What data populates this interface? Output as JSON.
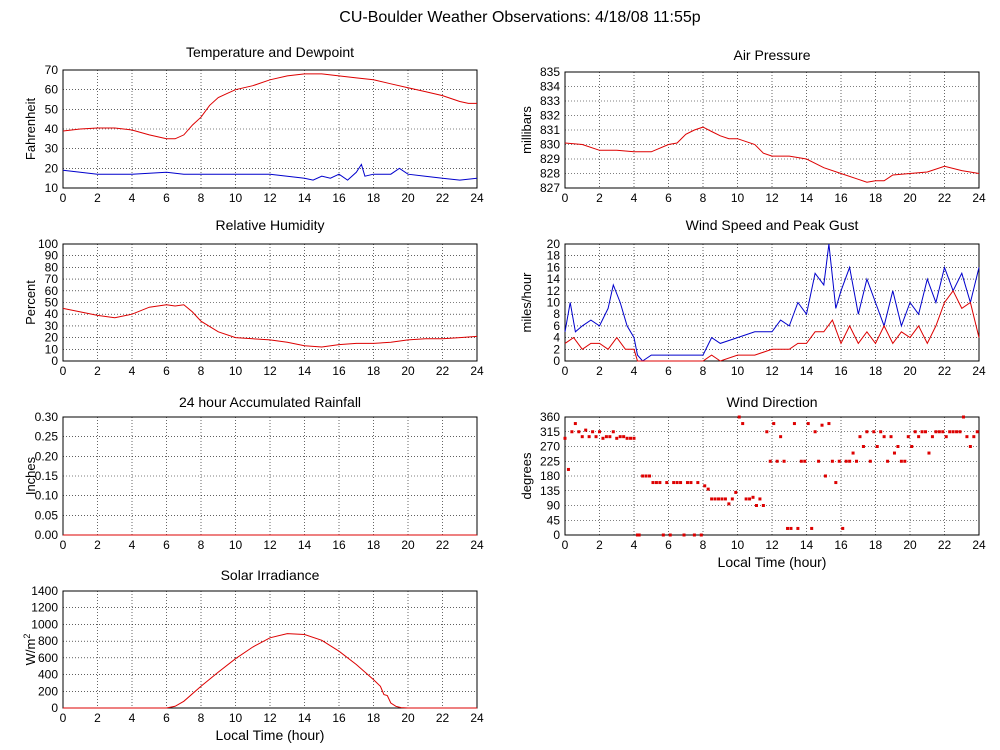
{
  "page": {
    "title": "CU-Boulder Weather Observations: 4/18/08 11:55p"
  },
  "colors": {
    "red": "#dd0000",
    "blue": "#0000cc",
    "grid": "#000000"
  },
  "chart_data": [
    {
      "id": "temperature",
      "type": "line",
      "title": "Temperature and Dewpoint",
      "xlabel": "",
      "ylabel": "Fahrenheit",
      "xlim": [
        0,
        24
      ],
      "ylim": [
        10,
        70
      ],
      "xticks": [
        "0",
        "2",
        "4",
        "6",
        "8",
        "10",
        "12",
        "14",
        "16",
        "18",
        "20",
        "22",
        "24"
      ],
      "yticks": [
        "10",
        "20",
        "30",
        "40",
        "50",
        "60",
        "70"
      ],
      "ytick_values": [
        10,
        20,
        30,
        40,
        50,
        60,
        70
      ],
      "series": [
        {
          "color": "red",
          "x": [
            0,
            1,
            2,
            3,
            4,
            5,
            6,
            6.5,
            7,
            7.5,
            8,
            8.5,
            9,
            9.5,
            10,
            11,
            12,
            13,
            14,
            15,
            16,
            17,
            18,
            19,
            20,
            21,
            22,
            23,
            23.5,
            24
          ],
          "y": [
            39,
            40,
            40.5,
            40.5,
            39.5,
            37,
            35,
            35,
            37,
            42,
            46,
            52,
            56,
            58,
            60,
            62,
            65,
            67,
            68,
            68,
            67,
            66,
            65,
            63,
            61,
            59,
            57,
            54,
            53,
            53
          ]
        },
        {
          "color": "blue",
          "x": [
            0,
            1,
            2,
            3,
            4,
            5,
            6,
            7,
            8,
            9,
            10,
            11,
            12,
            13,
            14,
            14.5,
            15,
            15.5,
            16,
            16.5,
            17,
            17.3,
            17.5,
            18,
            19,
            19.5,
            20,
            21,
            22,
            23,
            24
          ],
          "y": [
            19,
            18,
            17,
            17,
            17,
            17.5,
            18,
            17,
            17,
            17,
            17,
            17,
            17,
            16,
            15,
            14,
            16,
            15,
            17,
            14,
            18,
            22,
            16,
            17,
            17,
            20,
            17,
            16,
            15,
            14,
            15
          ]
        }
      ]
    },
    {
      "id": "pressure",
      "type": "line",
      "title": "Air Pressure",
      "xlabel": "",
      "ylabel": "millibars",
      "xlim": [
        0,
        24
      ],
      "ylim": [
        827,
        835
      ],
      "xticks": [
        "0",
        "2",
        "4",
        "6",
        "8",
        "10",
        "12",
        "14",
        "16",
        "18",
        "20",
        "22",
        "24"
      ],
      "yticks": [
        "827",
        "828",
        "829",
        "830",
        "831",
        "832",
        "833",
        "834",
        "835"
      ],
      "ytick_values": [
        827,
        828,
        829,
        830,
        831,
        832,
        833,
        834,
        835
      ],
      "series": [
        {
          "color": "red",
          "x": [
            0,
            1,
            2,
            3,
            4,
            5,
            6,
            6.5,
            7,
            7.5,
            8,
            8.5,
            9,
            9.5,
            10,
            11,
            11.5,
            12,
            13,
            14,
            14.5,
            15,
            16,
            17,
            17.5,
            18,
            18.5,
            19,
            20,
            21,
            22,
            23,
            24
          ],
          "y": [
            830.1,
            830,
            829.6,
            829.6,
            829.5,
            829.5,
            830,
            830.1,
            830.7,
            831,
            831.2,
            830.9,
            830.6,
            830.4,
            830.4,
            830,
            829.4,
            829.2,
            829.2,
            829,
            828.7,
            828.4,
            828,
            827.6,
            827.4,
            827.5,
            827.5,
            827.9,
            828,
            828.1,
            828.5,
            828.2,
            828
          ]
        }
      ]
    },
    {
      "id": "humidity",
      "type": "line",
      "title": "Relative Humidity",
      "xlabel": "",
      "ylabel": "Percent",
      "xlim": [
        0,
        24
      ],
      "ylim": [
        0,
        100
      ],
      "xticks": [
        "0",
        "2",
        "4",
        "6",
        "8",
        "10",
        "12",
        "14",
        "16",
        "18",
        "20",
        "22",
        "24"
      ],
      "yticks": [
        "0",
        "10",
        "20",
        "30",
        "40",
        "50",
        "60",
        "70",
        "80",
        "90",
        "100"
      ],
      "ytick_values": [
        0,
        10,
        20,
        30,
        40,
        50,
        60,
        70,
        80,
        90,
        100
      ],
      "series": [
        {
          "color": "red",
          "x": [
            0,
            1,
            2,
            3,
            4,
            5,
            6,
            6.5,
            7,
            7.5,
            8,
            9,
            10,
            11,
            12,
            13,
            14,
            15,
            16,
            17,
            18,
            19,
            20,
            21,
            22,
            23,
            24
          ],
          "y": [
            45,
            42,
            39,
            37,
            40,
            46,
            48,
            47,
            48,
            42,
            34,
            25,
            20,
            19,
            18,
            16,
            13,
            12,
            14,
            15,
            15,
            16,
            18,
            19,
            19,
            20,
            21
          ]
        }
      ]
    },
    {
      "id": "wind",
      "type": "line",
      "title": "Wind Speed and Peak Gust",
      "xlabel": "",
      "ylabel": "miles/hour",
      "xlim": [
        0,
        24
      ],
      "ylim": [
        0,
        20
      ],
      "xticks": [
        "0",
        "2",
        "4",
        "6",
        "8",
        "10",
        "12",
        "14",
        "16",
        "18",
        "20",
        "22",
        "24"
      ],
      "yticks": [
        "0",
        "2",
        "4",
        "6",
        "8",
        "10",
        "12",
        "14",
        "16",
        "18",
        "20"
      ],
      "ytick_values": [
        0,
        2,
        4,
        6,
        8,
        10,
        12,
        14,
        16,
        18,
        20
      ],
      "series": [
        {
          "color": "blue",
          "x": [
            0,
            0.3,
            0.6,
            1,
            1.5,
            2,
            2.5,
            2.8,
            3.2,
            3.6,
            4,
            4.2,
            4.5,
            5,
            6,
            7,
            8,
            8.5,
            9,
            10,
            11,
            12,
            12.5,
            13,
            13.5,
            14,
            14.5,
            15,
            15.3,
            15.7,
            16,
            16.5,
            17,
            17.5,
            18,
            18.5,
            19,
            19.5,
            20,
            20.5,
            21,
            21.5,
            22,
            22.5,
            23,
            23.5,
            24
          ],
          "y": [
            5,
            10,
            5,
            6,
            7,
            6,
            9,
            13,
            10,
            6,
            4,
            1,
            0,
            1,
            1,
            1,
            1,
            4,
            3,
            4,
            5,
            5,
            7,
            6,
            10,
            8,
            15,
            13,
            20,
            9,
            12,
            16,
            8,
            14,
            10,
            6,
            12,
            6,
            10,
            8,
            14,
            10,
            16,
            12,
            15,
            10,
            16
          ]
        },
        {
          "color": "red",
          "x": [
            0,
            0.5,
            1,
            1.5,
            2,
            2.5,
            3,
            3.5,
            4,
            4.2,
            5,
            6,
            7,
            8,
            8.5,
            9,
            10,
            11,
            12,
            13,
            13.5,
            14,
            14.5,
            15,
            15.5,
            16,
            16.5,
            17,
            17.5,
            18,
            18.5,
            19,
            19.5,
            20,
            20.5,
            21,
            21.5,
            22,
            22.5,
            23,
            23.5,
            24
          ],
          "y": [
            3,
            4,
            2,
            3,
            3,
            2,
            4,
            2,
            2,
            0,
            0,
            0,
            0,
            0,
            1,
            0,
            1,
            1,
            2,
            2,
            3,
            3,
            5,
            5,
            7,
            3,
            6,
            3,
            5,
            3,
            6,
            3,
            5,
            4,
            6,
            3,
            6,
            10,
            12,
            9,
            10,
            4
          ]
        }
      ]
    },
    {
      "id": "rain",
      "type": "line",
      "title": "24 hour Accumulated Rainfall",
      "xlabel": "",
      "ylabel": "Inches",
      "xlim": [
        0,
        24
      ],
      "ylim": [
        0,
        0.3
      ],
      "xticks": [
        "0",
        "2",
        "4",
        "6",
        "8",
        "10",
        "12",
        "14",
        "16",
        "18",
        "20",
        "22",
        "24"
      ],
      "yticks": [
        "0.00",
        "0.05",
        "0.10",
        "0.15",
        "0.20",
        "0.25",
        "0.30"
      ],
      "ytick_values": [
        0,
        0.05,
        0.1,
        0.15,
        0.2,
        0.25,
        0.3
      ],
      "series": [
        {
          "color": "red",
          "x": [
            0,
            24
          ],
          "y": [
            0,
            0
          ]
        }
      ]
    },
    {
      "id": "direction",
      "type": "scatter",
      "title": "Wind Direction",
      "xlabel": "Local Time (hour)",
      "ylabel": "degrees",
      "xlim": [
        0,
        24
      ],
      "ylim": [
        0,
        360
      ],
      "xticks": [
        "0",
        "2",
        "4",
        "6",
        "8",
        "10",
        "12",
        "14",
        "16",
        "18",
        "20",
        "22",
        "24"
      ],
      "yticks": [
        "0",
        "45",
        "90",
        "135",
        "180",
        "225",
        "270",
        "315",
        "360"
      ],
      "ytick_values": [
        0,
        45,
        90,
        135,
        180,
        225,
        270,
        315,
        360
      ],
      "series": [
        {
          "color": "red",
          "x": [
            0,
            0.2,
            0.4,
            0.6,
            0.8,
            1,
            1.2,
            1.4,
            1.6,
            1.8,
            2,
            2.2,
            2.4,
            2.6,
            2.8,
            3,
            3.2,
            3.4,
            3.6,
            3.8,
            4,
            4.2,
            4.3,
            4.5,
            4.7,
            4.9,
            5.1,
            5.3,
            5.5,
            5.7,
            5.9,
            6.1,
            6.3,
            6.5,
            6.7,
            6.9,
            7.1,
            7.3,
            7.5,
            7.7,
            7.9,
            8.1,
            8.3,
            8.5,
            8.7,
            8.9,
            9.1,
            9.3,
            9.5,
            9.7,
            9.9,
            10.1,
            10.3,
            10.5,
            10.7,
            10.9,
            11.1,
            11.3,
            11.5,
            11.7,
            11.9,
            12.1,
            12.3,
            12.5,
            12.7,
            12.9,
            13.1,
            13.3,
            13.5,
            13.7,
            13.9,
            14.1,
            14.3,
            14.5,
            14.7,
            14.9,
            15.1,
            15.3,
            15.5,
            15.7,
            15.9,
            16.1,
            16.3,
            16.5,
            16.7,
            16.9,
            17.1,
            17.3,
            17.5,
            17.7,
            17.9,
            18.1,
            18.3,
            18.5,
            18.7,
            18.9,
            19.1,
            19.3,
            19.5,
            19.7,
            19.9,
            20.1,
            20.3,
            20.5,
            20.7,
            20.9,
            21.1,
            21.3,
            21.5,
            21.7,
            21.9,
            22.1,
            22.3,
            22.5,
            22.7,
            22.9,
            23.1,
            23.3,
            23.5,
            23.7,
            23.9
          ],
          "y": [
            295,
            200,
            315,
            340,
            315,
            300,
            320,
            300,
            315,
            300,
            315,
            295,
            300,
            300,
            315,
            295,
            300,
            300,
            295,
            295,
            295,
            0,
            0,
            180,
            180,
            180,
            160,
            160,
            160,
            0,
            160,
            0,
            160,
            160,
            160,
            0,
            160,
            160,
            0,
            160,
            0,
            150,
            140,
            110,
            110,
            110,
            110,
            110,
            95,
            110,
            130,
            360,
            340,
            110,
            110,
            115,
            90,
            110,
            90,
            315,
            225,
            340,
            225,
            300,
            225,
            20,
            20,
            340,
            20,
            225,
            225,
            340,
            20,
            315,
            225,
            335,
            180,
            340,
            225,
            160,
            225,
            20,
            225,
            225,
            250,
            225,
            300,
            270,
            315,
            225,
            315,
            270,
            315,
            300,
            225,
            300,
            250,
            270,
            225,
            225,
            300,
            270,
            315,
            300,
            315,
            315,
            250,
            300,
            315,
            315,
            315,
            300,
            315,
            315,
            315,
            315,
            360,
            300,
            270,
            300,
            315
          ]
        }
      ]
    },
    {
      "id": "solar",
      "type": "line",
      "title": "Solar Irradiance",
      "xlabel": "Local Time (hour)",
      "ylabel": "W/m",
      "ylabel_sup": "2",
      "xlim": [
        0,
        24
      ],
      "ylim": [
        0,
        1400
      ],
      "xticks": [
        "0",
        "2",
        "4",
        "6",
        "8",
        "10",
        "12",
        "14",
        "16",
        "18",
        "20",
        "22",
        "24"
      ],
      "yticks": [
        "0",
        "200",
        "400",
        "600",
        "800",
        "1000",
        "1200",
        "1400"
      ],
      "ytick_values": [
        0,
        200,
        400,
        600,
        800,
        1000,
        1200,
        1400
      ],
      "series": [
        {
          "color": "red",
          "x": [
            0,
            6,
            6.5,
            7,
            8,
            9,
            10,
            11,
            12,
            13,
            14,
            15,
            16,
            17,
            18,
            18.4,
            18.6,
            18.8,
            19,
            19.3,
            19.6,
            20,
            24
          ],
          "y": [
            0,
            0,
            20,
            80,
            260,
            430,
            590,
            730,
            840,
            890,
            880,
            810,
            680,
            520,
            340,
            260,
            160,
            150,
            60,
            20,
            5,
            0,
            0
          ]
        }
      ]
    }
  ]
}
